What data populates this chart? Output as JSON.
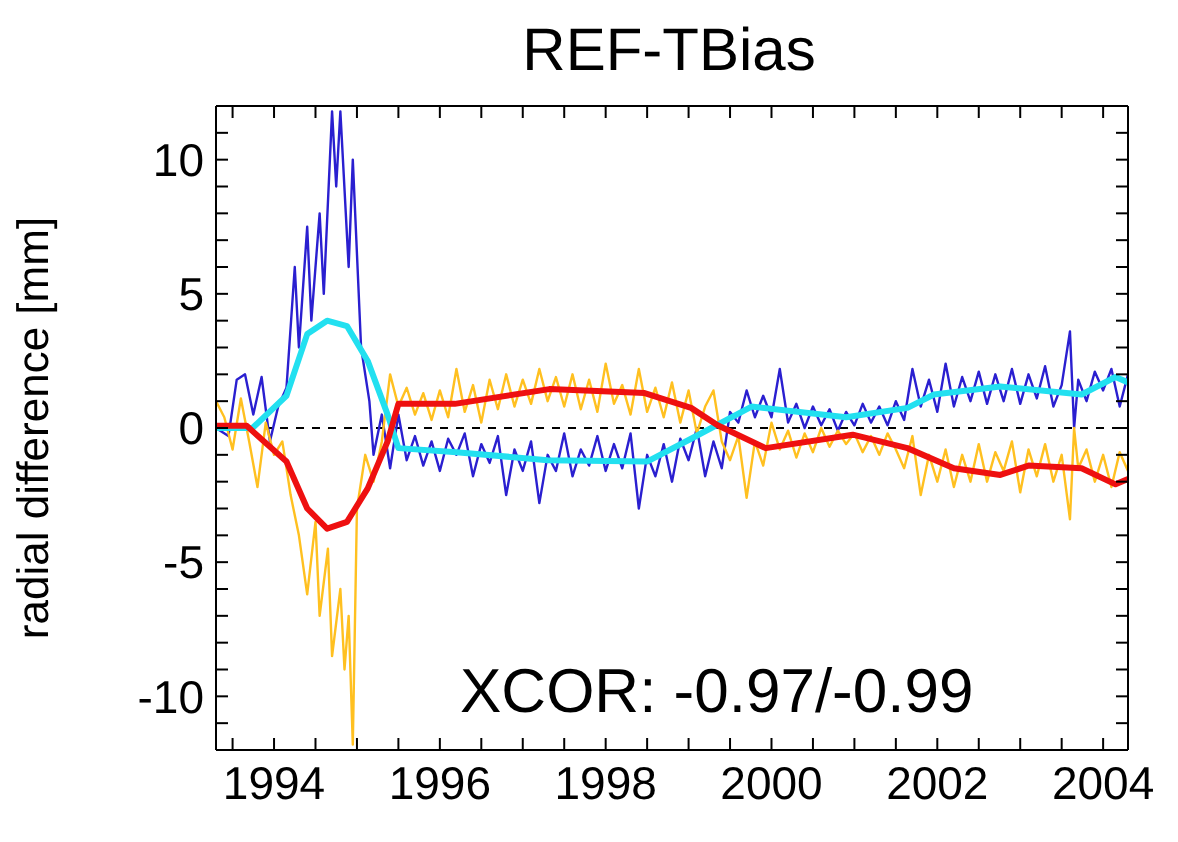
{
  "chart_data": {
    "type": "line",
    "title": "REF-TBias",
    "ylabel": "radial difference [mm]",
    "annotations": [
      {
        "text": "XCOR: -0.97/-0.99"
      }
    ],
    "xlim": [
      1993.3,
      2004.3
    ],
    "xticks": [
      {
        "value": 1993.5,
        "label": null
      },
      1994,
      {
        "value": 1994.5,
        "label": null
      },
      {
        "value": 1995,
        "label": null
      },
      {
        "value": 1995.5,
        "label": null
      },
      1996,
      {
        "value": 1996.5,
        "label": null
      },
      {
        "value": 1997,
        "label": null
      },
      {
        "value": 1997.5,
        "label": null
      },
      1998,
      {
        "value": 1998.5,
        "label": null
      },
      {
        "value": 1999,
        "label": null
      },
      {
        "value": 1999.5,
        "label": null
      },
      2000,
      {
        "value": 2000.5,
        "label": null
      },
      {
        "value": 2001,
        "label": null
      },
      {
        "value": 2001.5,
        "label": null
      },
      2002,
      {
        "value": 2002.5,
        "label": null
      },
      {
        "value": 2003,
        "label": null
      },
      {
        "value": 2003.5,
        "label": null
      },
      2004
    ],
    "ylim": [
      -12,
      12
    ],
    "yticks": [
      {
        "value": -11,
        "label": null
      },
      -10,
      {
        "value": -9,
        "label": null
      },
      {
        "value": -8,
        "label": null
      },
      {
        "value": -7,
        "label": null
      },
      {
        "value": -6,
        "label": null
      },
      -5,
      {
        "value": -4,
        "label": null
      },
      {
        "value": -3,
        "label": null
      },
      {
        "value": -2,
        "label": null
      },
      {
        "value": -1,
        "label": null
      },
      0,
      {
        "value": 1,
        "label": null
      },
      {
        "value": 2,
        "label": null
      },
      {
        "value": 3,
        "label": null
      },
      {
        "value": 4,
        "label": null
      },
      5,
      {
        "value": 6,
        "label": null
      },
      {
        "value": 7,
        "label": null
      },
      {
        "value": 8,
        "label": null
      },
      {
        "value": 9,
        "label": null
      },
      10,
      {
        "value": 11,
        "label": null
      }
    ],
    "marker": "none",
    "ref_lines": [
      {
        "axis": "y",
        "value": 0,
        "color": "#000000",
        "line_style": "dashed"
      }
    ],
    "series": [
      {
        "color": "#2a1fd0",
        "line_style": "solid",
        "x": [
          1993.3,
          1993.45,
          1993.55,
          1993.65,
          1993.75,
          1993.85,
          1993.95,
          1994.05,
          1994.15,
          1994.25,
          1994.3,
          1994.4,
          1994.45,
          1994.55,
          1994.6,
          1994.7,
          1994.75,
          1994.8,
          1994.9,
          1994.95,
          1995.05,
          1995.15,
          1995.2,
          1995.3,
          1995.4,
          1995.5,
          1995.6,
          1995.7,
          1995.8,
          1995.9,
          1996.0,
          1996.1,
          1996.2,
          1996.3,
          1996.4,
          1996.5,
          1996.6,
          1996.7,
          1996.8,
          1996.9,
          1997.0,
          1997.1,
          1997.2,
          1997.3,
          1997.4,
          1997.5,
          1997.6,
          1997.7,
          1997.8,
          1997.9,
          1998.0,
          1998.1,
          1998.2,
          1998.3,
          1998.4,
          1998.5,
          1998.6,
          1998.7,
          1998.8,
          1998.9,
          1999.0,
          1999.1,
          1999.2,
          1999.3,
          1999.4,
          1999.5,
          1999.6,
          1999.7,
          1999.8,
          1999.9,
          2000.0,
          2000.1,
          2000.2,
          2000.3,
          2000.4,
          2000.5,
          2000.6,
          2000.7,
          2000.8,
          2000.9,
          2001.0,
          2001.1,
          2001.2,
          2001.3,
          2001.4,
          2001.5,
          2001.6,
          2001.7,
          2001.8,
          2001.9,
          2002.0,
          2002.1,
          2002.2,
          2002.3,
          2002.4,
          2002.5,
          2002.6,
          2002.7,
          2002.8,
          2002.9,
          2003.0,
          2003.1,
          2003.2,
          2003.3,
          2003.4,
          2003.5,
          2003.6,
          2003.65,
          2003.7,
          2003.8,
          2003.9,
          2004.0,
          2004.1,
          2004.2,
          2004.3
        ],
        "values": [
          0,
          -0.3,
          1.8,
          2,
          0.5,
          1.9,
          -0.5,
          0.8,
          1.5,
          6,
          3,
          7.5,
          4,
          8,
          5,
          11.8,
          9,
          11.8,
          6,
          10,
          3,
          1,
          -1,
          0.5,
          -1.5,
          0.5,
          -1.2,
          -0.3,
          -1.4,
          -0.5,
          -1.6,
          -0.4,
          -1,
          -0.2,
          -1.8,
          -0.6,
          -1.3,
          -0.3,
          -2.5,
          -0.8,
          -1.6,
          -0.5,
          -2.8,
          -1,
          -1.6,
          -0.2,
          -1.8,
          -0.8,
          -1.4,
          -0.3,
          -1.6,
          -0.6,
          -1.5,
          -0.2,
          -3,
          -1,
          -1.8,
          -0.6,
          -2,
          -0.4,
          -1.2,
          0,
          -1.8,
          -0.5,
          -1.5,
          0.6,
          0.2,
          1.4,
          0.4,
          1.2,
          0.4,
          2.2,
          0.2,
          0.9,
          0,
          0.8,
          0.1,
          0.7,
          -0.1,
          0.6,
          0.1,
          0.9,
          0.2,
          0.8,
          0.1,
          1.0,
          0.3,
          2.2,
          0.8,
          1.8,
          0.6,
          2.4,
          0.8,
          1.9,
          1.0,
          2.1,
          0.9,
          2.0,
          1.0,
          2.2,
          0.9,
          2.0,
          1.1,
          2.3,
          0.8,
          1.6,
          3.6,
          0,
          1.8,
          1.0,
          2.1,
          1.4,
          2.2,
          0.8,
          2.0
        ]
      },
      {
        "color": "#ffc020",
        "line_style": "solid",
        "x": [
          1993.3,
          1993.4,
          1993.5,
          1993.6,
          1993.7,
          1993.8,
          1993.9,
          1994.0,
          1994.1,
          1994.2,
          1994.3,
          1994.4,
          1994.5,
          1994.55,
          1994.65,
          1994.7,
          1994.8,
          1994.85,
          1994.9,
          1994.95,
          1995.0,
          1995.1,
          1995.2,
          1995.3,
          1995.4,
          1995.5,
          1995.6,
          1995.7,
          1995.8,
          1995.9,
          1996.0,
          1996.1,
          1996.2,
          1996.3,
          1996.4,
          1996.5,
          1996.6,
          1996.7,
          1996.8,
          1996.9,
          1997.0,
          1997.1,
          1997.2,
          1997.3,
          1997.4,
          1997.5,
          1997.6,
          1997.7,
          1997.8,
          1997.9,
          1998.0,
          1998.1,
          1998.2,
          1998.3,
          1998.4,
          1998.5,
          1998.6,
          1998.7,
          1998.8,
          1998.9,
          1999.0,
          1999.1,
          1999.2,
          1999.3,
          1999.4,
          1999.5,
          1999.6,
          1999.7,
          1999.8,
          1999.9,
          2000.0,
          2000.1,
          2000.2,
          2000.3,
          2000.4,
          2000.5,
          2000.6,
          2000.7,
          2000.8,
          2000.9,
          2001.0,
          2001.1,
          2001.2,
          2001.3,
          2001.4,
          2001.5,
          2001.6,
          2001.7,
          2001.8,
          2001.9,
          2002.0,
          2002.1,
          2002.2,
          2002.3,
          2002.4,
          2002.5,
          2002.6,
          2002.7,
          2002.8,
          2002.9,
          2003.0,
          2003.1,
          2003.2,
          2003.3,
          2003.4,
          2003.5,
          2003.6,
          2003.65,
          2003.7,
          2003.8,
          2003.9,
          2004.0,
          2004.1,
          2004.2,
          2004.3
        ],
        "values": [
          1,
          0.4,
          -0.8,
          1.1,
          -0.5,
          -2.2,
          0.2,
          -1,
          -0.5,
          -2.5,
          -4,
          -6.2,
          -3.5,
          -7,
          -4.5,
          -8.5,
          -6,
          -9,
          -7,
          -11.8,
          -3,
          -1,
          -2,
          -0.5,
          2,
          0.8,
          1.5,
          0.5,
          1.3,
          0.3,
          1.4,
          0.4,
          2.2,
          0.6,
          1.6,
          0.2,
          1.8,
          0.7,
          2.0,
          0.8,
          1.8,
          0.9,
          2.2,
          1.0,
          1.9,
          0.8,
          2.0,
          0.7,
          1.8,
          0.6,
          2.4,
          0.9,
          1.6,
          0.5,
          2.2,
          0.6,
          1.5,
          0.4,
          1.7,
          0.2,
          1.4,
          -0.2,
          0.8,
          1.4,
          -0.5,
          -1.2,
          -0.3,
          -2.6,
          -0.5,
          -1.4,
          0.2,
          -0.8,
          -0.1,
          -1.1,
          -0.2,
          -0.9,
          0,
          -0.7,
          -0.1,
          -0.6,
          -0.2,
          -0.9,
          -0.3,
          -1.0,
          -0.2,
          -0.8,
          -1.5,
          -0.3,
          -2.5,
          -1.0,
          -2.0,
          -0.8,
          -2.2,
          -1.0,
          -2.0,
          -0.6,
          -2.0,
          -0.9,
          -1.6,
          -0.5,
          -2.4,
          -0.8,
          -1.8,
          -0.6,
          -2.0,
          -1.0,
          -3.4,
          0,
          -1.5,
          -0.8,
          -2.0,
          -1.0,
          -2.2,
          -0.9,
          -1.6
        ]
      },
      {
        "color": "#22e0f0",
        "line_style": "solid",
        "x": [
          1993.3,
          1993.74,
          1994.15,
          1994.4,
          1994.64,
          1994.88,
          1995.13,
          1995.37,
          1995.5,
          1996.2,
          1997.3,
          1998.5,
          1999.03,
          1999.76,
          2000.9,
          2001.64,
          2001.96,
          2002.76,
          2003.74,
          2004.15,
          2004.3
        ],
        "values": [
          0,
          0,
          1.2,
          3.5,
          4.0,
          3.8,
          2.5,
          0.5,
          -0.75,
          -0.9,
          -1.2,
          -1.25,
          -0.4,
          0.8,
          0.4,
          0.75,
          1.25,
          1.55,
          1.25,
          1.9,
          1.7
        ]
      },
      {
        "color": "#ee1010",
        "line_style": "solid",
        "x": [
          1993.3,
          1993.67,
          1994.15,
          1994.4,
          1994.64,
          1994.88,
          1995.13,
          1995.37,
          1995.5,
          1996.18,
          1997.32,
          1998.47,
          1999.03,
          1999.35,
          1999.93,
          2000.98,
          2001.64,
          2002.2,
          2002.76,
          2003.1,
          2003.74,
          2004.15,
          2004.3
        ],
        "values": [
          0.08,
          0.08,
          -1.25,
          -3,
          -3.75,
          -3.5,
          -2.25,
          -0.5,
          0.9,
          0.9,
          1.45,
          1.3,
          0.75,
          0.1,
          -0.75,
          -0.25,
          -0.75,
          -1.5,
          -1.75,
          -1.4,
          -1.5,
          -2.1,
          -1.9
        ]
      }
    ]
  }
}
